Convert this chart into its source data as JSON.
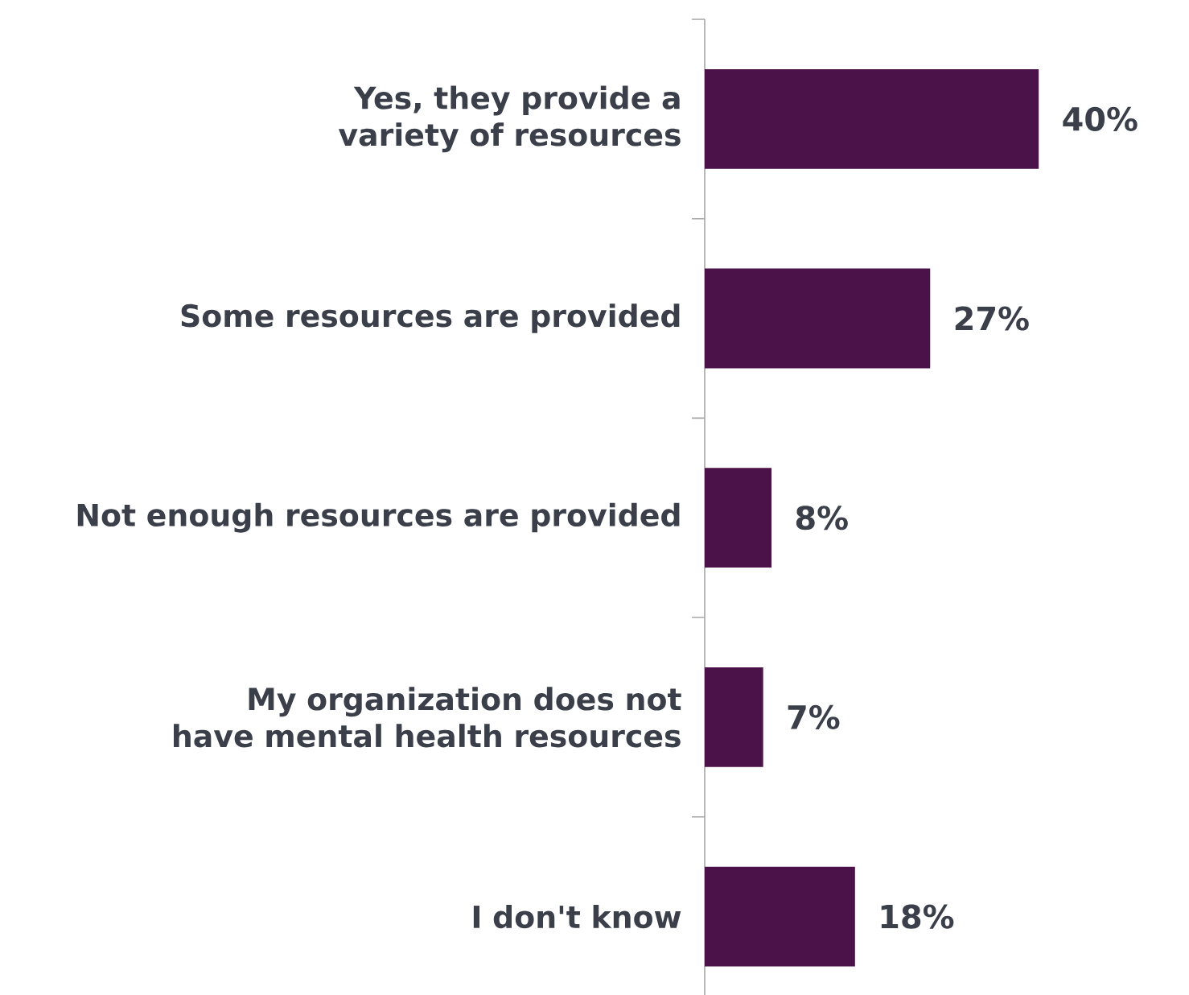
{
  "chart_data": {
    "type": "bar",
    "orientation": "horizontal",
    "categories": [
      "Yes, they provide a variety of resources",
      "Some resources are provided",
      "Not enough resources are provided",
      "My organization does not have mental health resources",
      "I don't know"
    ],
    "values": [
      40,
      27,
      8,
      7,
      18
    ],
    "value_labels": [
      "40%",
      "27%",
      "8%",
      "7%",
      "18%"
    ],
    "color": "#4a1248"
  }
}
